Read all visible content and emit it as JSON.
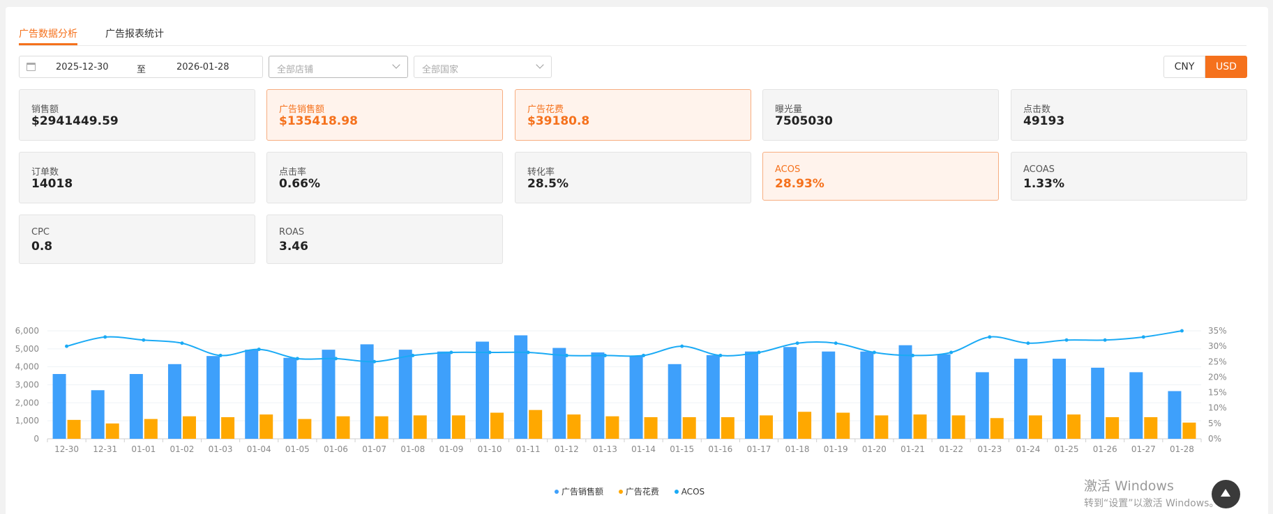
{
  "tabs": [
    {
      "label": "广告数据分析",
      "active": true
    },
    {
      "label": "广告报表统计",
      "active": false
    }
  ],
  "filters": {
    "start_date": "2025-12-30",
    "separator": "至",
    "end_date": "2026-01-28",
    "shop_placeholder": "全部店铺",
    "country_placeholder": "全部国家"
  },
  "currency": {
    "options": [
      "CNY",
      "USD"
    ],
    "selected": "USD"
  },
  "metrics": [
    {
      "label": "销售额",
      "value": "$2941449.59",
      "highlight": false
    },
    {
      "label": "广告销售额",
      "value": "$135418.98",
      "highlight": true
    },
    {
      "label": "广告花费",
      "value": "$39180.8",
      "highlight": true
    },
    {
      "label": "曝光量",
      "value": "7505030",
      "highlight": false
    },
    {
      "label": "点击数",
      "value": "49193",
      "highlight": false
    },
    {
      "label": "订单数",
      "value": "14018",
      "highlight": false
    },
    {
      "label": "点击率",
      "value": "0.66%",
      "highlight": false
    },
    {
      "label": "转化率",
      "value": "28.5%",
      "highlight": false
    },
    {
      "label": "ACOS",
      "value": "28.93%",
      "highlight": true
    },
    {
      "label": "ACOAS",
      "value": "1.33%",
      "highlight": false
    },
    {
      "label": "CPC",
      "value": "0.8",
      "highlight": false
    },
    {
      "label": "ROAS",
      "value": "3.46",
      "highlight": false
    }
  ],
  "chart_data": {
    "type": "bar",
    "categories": [
      "12-30",
      "12-31",
      "01-01",
      "01-02",
      "01-03",
      "01-04",
      "01-05",
      "01-06",
      "01-07",
      "01-08",
      "01-09",
      "01-10",
      "01-11",
      "01-12",
      "01-13",
      "01-14",
      "01-15",
      "01-16",
      "01-17",
      "01-18",
      "01-19",
      "01-20",
      "01-21",
      "01-22",
      "01-23",
      "01-24",
      "01-25",
      "01-26",
      "01-27",
      "01-28"
    ],
    "series": [
      {
        "name": "广告销售额",
        "type": "bar",
        "color": "#3ea0fb",
        "values": [
          3600,
          2700,
          3600,
          4150,
          4600,
          4950,
          4500,
          4950,
          5250,
          4950,
          4850,
          5400,
          5750,
          5050,
          4800,
          4600,
          4150,
          4650,
          4850,
          5100,
          4850,
          4850,
          5200,
          4700,
          3700,
          4450,
          4450,
          3950,
          3700,
          2650
        ]
      },
      {
        "name": "广告花费",
        "type": "bar",
        "color": "#ffa800",
        "values": [
          1050,
          850,
          1100,
          1250,
          1200,
          1350,
          1100,
          1250,
          1250,
          1300,
          1300,
          1450,
          1600,
          1350,
          1250,
          1200,
          1200,
          1200,
          1300,
          1500,
          1450,
          1300,
          1350,
          1300,
          1150,
          1300,
          1350,
          1200,
          1200,
          900
        ]
      },
      {
        "name": "ACOS",
        "type": "line",
        "axis": "right",
        "color": "#1aaaf5",
        "values": [
          30,
          33,
          32,
          31,
          27,
          29,
          26,
          26,
          25,
          27,
          28,
          28,
          28,
          27,
          27,
          27,
          30,
          27,
          28,
          31,
          31,
          28,
          27,
          28,
          33,
          31,
          32,
          32,
          33,
          35
        ]
      }
    ],
    "ylim": [
      0,
      6000
    ],
    "y_ticks": [
      "0",
      "1,000",
      "2,000",
      "3,000",
      "4,000",
      "5,000",
      "6,000"
    ],
    "y2lim": [
      0,
      35
    ],
    "y2_ticks": [
      "0%",
      "5%",
      "10%",
      "15%",
      "20%",
      "25%",
      "30%",
      "35%"
    ],
    "legend_position": "bottom-center",
    "grid": true
  },
  "watermark": {
    "line1": "激活 Windows",
    "line2": "转到“设置”以激活 Windows。"
  }
}
